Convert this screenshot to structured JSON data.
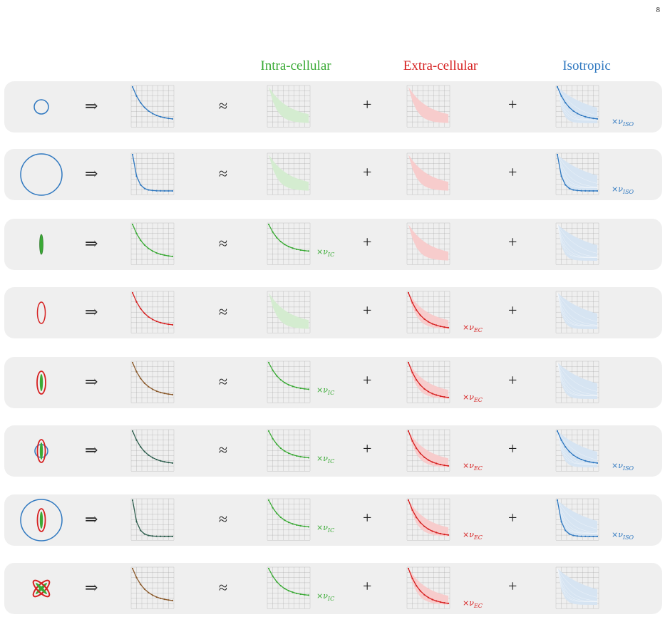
{
  "page_number": "8",
  "headers": {
    "intra": "Intra-cellular",
    "extra": "Extra-cellular",
    "iso": "Isotropic"
  },
  "symbols": {
    "implies": "⇒",
    "approx": "≈",
    "plus": "+"
  },
  "colors": {
    "blue": "#2f78c0",
    "green": "#3aaa35",
    "red": "#d62020",
    "brown": "#8b5a2b",
    "darkgreen": "#2e5e4e",
    "green_faded": "#d4ecd0",
    "red_faded": "#f7cccc",
    "blue_faded": "#d6e4f2",
    "row_bg": "#efefef"
  },
  "coefficients": {
    "ic": "×ν_IC",
    "ec": "×ν_EC",
    "iso": "×ν_ISO"
  },
  "rows": [
    {
      "shape": "small-circle",
      "signal_color": "brown_blue",
      "active_ic": false,
      "active_ec": false,
      "active_iso": true
    },
    {
      "shape": "large-circle",
      "signal_color": "blue",
      "active_ic": false,
      "active_ec": false,
      "active_iso": true
    },
    {
      "shape": "thin-stick",
      "signal_color": "green",
      "active_ic": true,
      "active_ec": false,
      "active_iso": false
    },
    {
      "shape": "ellipse",
      "signal_color": "red",
      "active_ic": false,
      "active_ec": true,
      "active_iso": false
    },
    {
      "shape": "ellipse-stick",
      "signal_color": "brown",
      "active_ic": true,
      "active_ec": true,
      "active_iso": false
    },
    {
      "shape": "ellipse-stick-circle",
      "signal_color": "darkgreen",
      "active_ic": true,
      "active_ec": true,
      "active_iso": true
    },
    {
      "shape": "large-circle-ellipse-stick",
      "signal_color": "darkgreen",
      "active_ic": true,
      "active_ec": true,
      "active_iso": true
    },
    {
      "shape": "crossed",
      "signal_color": "brown",
      "active_ic": true,
      "active_ec": true,
      "active_iso": false
    }
  ]
}
